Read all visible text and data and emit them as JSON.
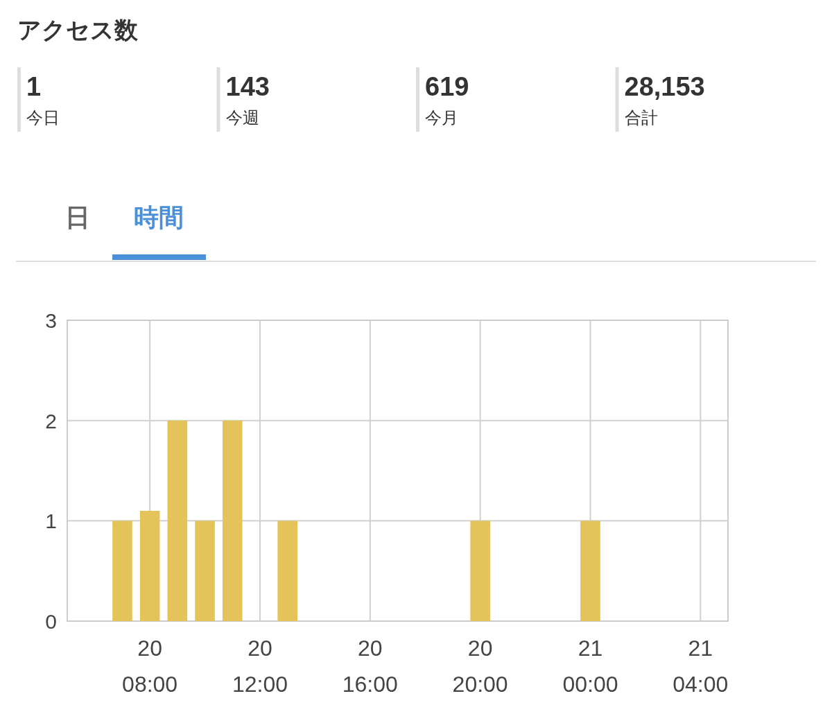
{
  "chart_data": [
    {
      "type": "other",
      "title": "アクセス数",
      "annotations": [
        "1",
        "今日",
        "143",
        "今週",
        "619",
        "今月",
        "28,153",
        "合計"
      ]
    },
    {
      "type": "bar",
      "annotations": [
        "日",
        "時間"
      ],
      "categories": [
        null,
        null,
        null,
        "20\n08:00",
        null,
        null,
        null,
        "20\n12:00",
        null,
        null,
        null,
        "20\n16:00",
        null,
        null,
        null,
        "20\n20:00",
        null,
        null,
        null,
        "21\n00:00",
        null,
        null,
        null,
        "21\n04:00"
      ],
      "values": [
        0,
        0,
        1,
        1.1,
        2,
        1,
        2,
        0,
        1,
        0,
        0,
        0,
        0,
        0,
        0,
        1,
        0,
        0,
        0,
        1,
        0,
        0,
        0,
        0
      ],
      "color": "#e4c35a",
      "ylim": [
        0,
        3
      ],
      "yticks": [
        0,
        1,
        2,
        3
      ],
      "grid": true
    }
  ]
}
